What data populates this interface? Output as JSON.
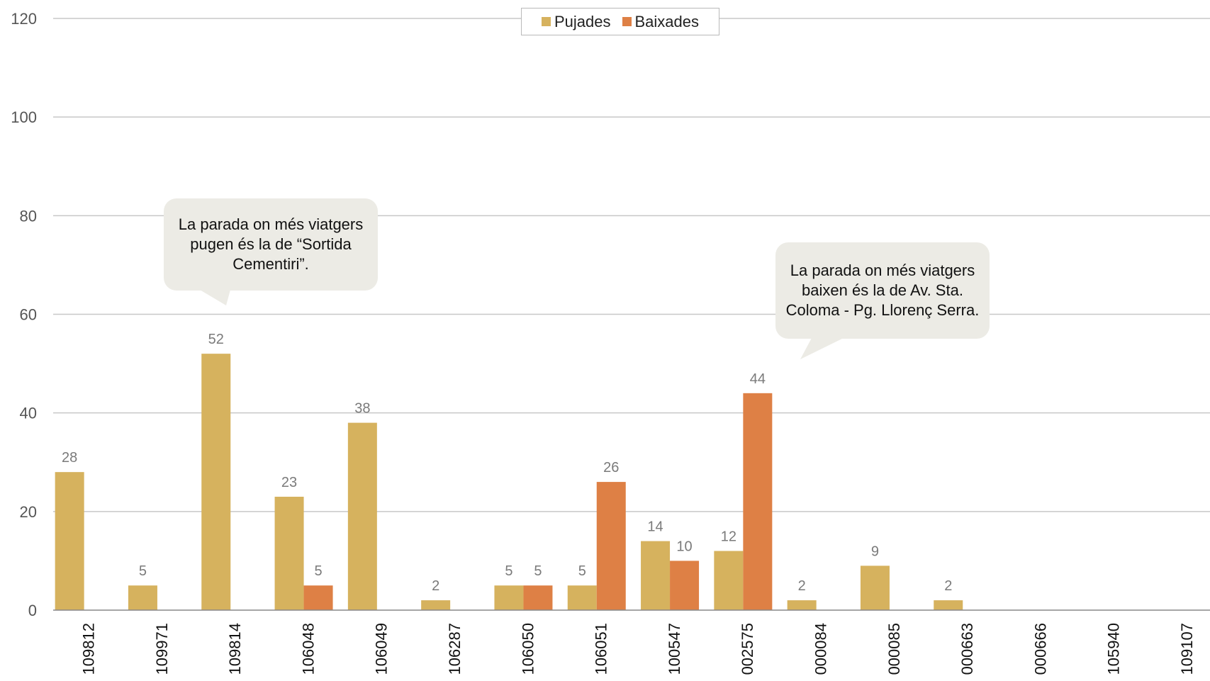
{
  "chart_data": {
    "type": "bar",
    "title": "",
    "xlabel": "",
    "ylabel": "",
    "categories": [
      "109812",
      "109971",
      "109814",
      "106048",
      "106049",
      "106287",
      "106050",
      "106051",
      "100547",
      "002575",
      "000084",
      "000085",
      "000663",
      "000666",
      "105940",
      "109107"
    ],
    "series": [
      {
        "name": "Pujades",
        "color": "#d6b25e",
        "values": [
          28,
          5,
          52,
          23,
          38,
          2,
          5,
          5,
          14,
          12,
          2,
          9,
          2,
          0,
          0,
          0
        ]
      },
      {
        "name": "Baixades",
        "color": "#de8045",
        "values": [
          0,
          0,
          0,
          5,
          0,
          0,
          5,
          26,
          10,
          44,
          0,
          0,
          0,
          0,
          0,
          0
        ]
      }
    ],
    "data_labels": {
      "Pujades": [
        "28",
        "5",
        "52",
        "23",
        "38",
        "2",
        "5",
        "5",
        "14",
        "12",
        "2",
        "9",
        "2",
        "",
        "",
        ""
      ],
      "Baixades": [
        "",
        "",
        "",
        "5",
        "",
        "",
        "5",
        "26",
        "10",
        "44",
        "",
        "",
        "",
        "",
        "",
        ""
      ]
    },
    "ylim": [
      0,
      120
    ],
    "yticks": [
      0,
      20,
      40,
      60,
      80,
      100,
      120
    ],
    "grid": true,
    "legend_position": "top-center"
  },
  "annotations": {
    "callout_1": "La parada on més viatgers pugen és la de “Sortida Cementiri”.",
    "callout_2": "La parada on més viatgers baixen és la de Av. Sta. Coloma - Pg. Llorenç Serra."
  },
  "colors": {
    "grid": "#c8c8c8",
    "axis": "#888888",
    "tick_text": "#555555",
    "data_label": "#7a7a7a",
    "callout_bg": "#ecebe5"
  }
}
